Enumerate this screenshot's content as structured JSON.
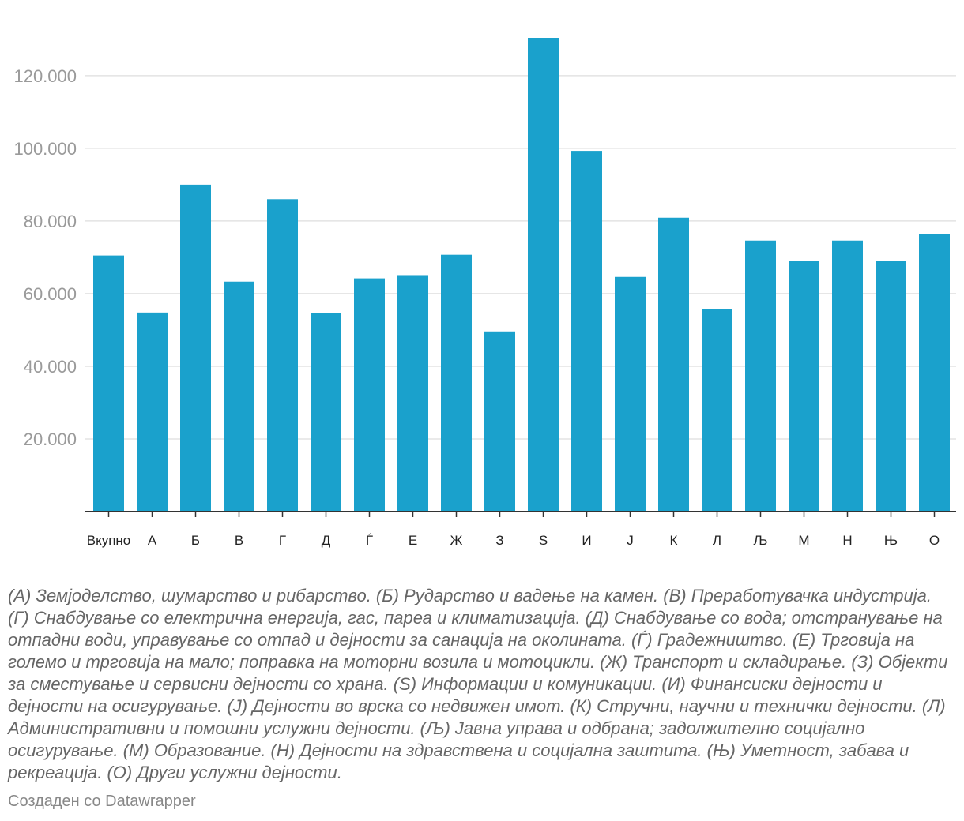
{
  "chart_data": {
    "type": "bar",
    "categories": [
      "Вкупно",
      "А",
      "Б",
      "В",
      "Г",
      "Д",
      "Ѓ",
      "Е",
      "Ж",
      "З",
      "S",
      "И",
      "Ј",
      "К",
      "Л",
      "Љ",
      "М",
      "Н",
      "Њ",
      "О"
    ],
    "values": [
      70500,
      54800,
      90000,
      63300,
      86000,
      54600,
      64200,
      65100,
      70700,
      49600,
      130400,
      99300,
      64600,
      80900,
      55700,
      74600,
      68900,
      74600,
      68900,
      76300
    ],
    "yticks": [
      20000,
      40000,
      60000,
      80000,
      100000,
      120000
    ],
    "ytick_labels": [
      "20.000",
      "40.000",
      "60.000",
      "80.000",
      "100.000",
      "120.000"
    ],
    "ylim": [
      0,
      130400
    ],
    "grid": true,
    "bar_color": "#1aa1cc"
  },
  "notes": "(А) Земјоделство, шумарство и рибарство. (Б) Рударство и вадење на камен. (В) Преработувачка индустрија. (Г) Снабдување со електрична енергија, гас, пареа и климатизација. (Д) Снабдување со вода; отстранување на отпадни води, управување со отпад и дејности за санација на околината. (Ѓ) Градежништво. (Е) Трговија на големо и трговија на мало; поправка на моторни возила и мотоцикли. (Ж) Транспорт и складирање. (З) Објекти за сместување и сервисни дејности со храна. (S) Информации и комуникации. (И) Финансиски дејности и дејности на осигурување. (Ј) Дејности во врска со недвижен имот. (К) Стручни, научни и технички дејности. (Л) Административни и помошни услужни дејности. (Љ) Јавна управа и одбрана; задолжително социјално осигурување. (М) Образование. (Н) Дејности на здравствена и социјална заштита. (Њ) Уметност, забава и рекреација. (О) Други услужни дејности.",
  "credit": "Создаден со Datawrapper"
}
